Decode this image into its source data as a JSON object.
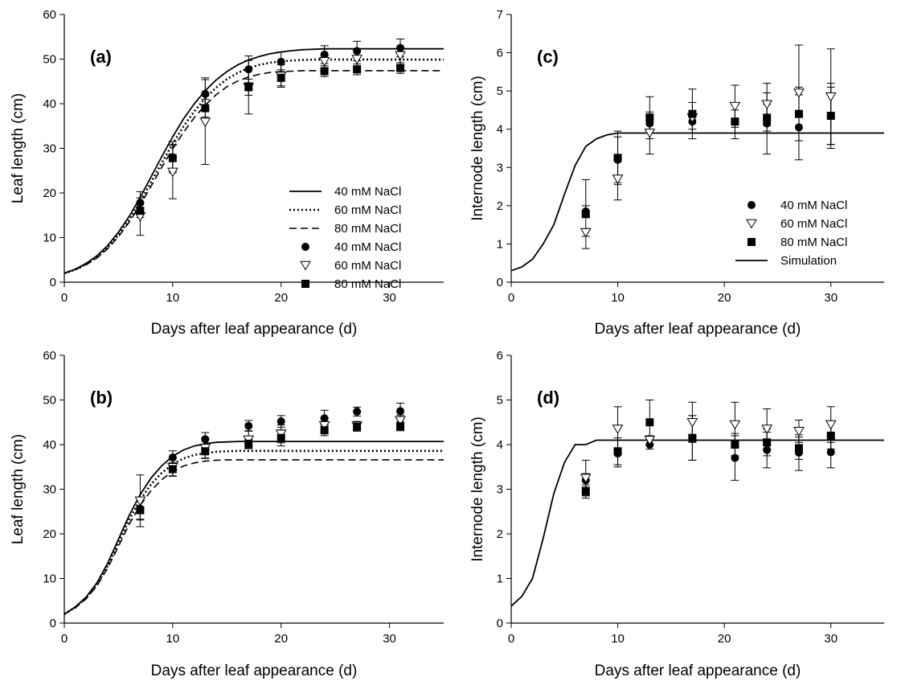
{
  "chart_data": [
    {
      "panel_label": "(a)",
      "type": "scatter",
      "xlabel": "Days after leaf appearance (d)",
      "ylabel": "Leaf length (cm)",
      "xlim": [
        0,
        35
      ],
      "ylim": [
        0,
        60
      ],
      "xticks": [
        0,
        10,
        20,
        30
      ],
      "yticks": [
        0,
        10,
        20,
        30,
        40,
        50,
        60
      ],
      "legend_position": "center-right",
      "legend": [
        {
          "label": "40 mM NaCl",
          "kind": "line",
          "style": "solid"
        },
        {
          "label": "60 mM NaCl",
          "kind": "line",
          "style": "dotted"
        },
        {
          "label": "80 mM NaCl",
          "kind": "line",
          "style": "dashed"
        },
        {
          "label": "40 mM NaCl",
          "kind": "marker",
          "marker": "circle"
        },
        {
          "label": "60 mM NaCl",
          "kind": "marker",
          "marker": "triangle-down"
        },
        {
          "label": "80 mM NaCl",
          "kind": "marker",
          "marker": "square"
        }
      ],
      "lines": [
        {
          "style": "solid",
          "x": [
            0,
            1,
            2,
            3,
            4,
            5,
            6,
            7,
            8,
            9,
            10,
            11,
            12,
            13,
            14,
            15,
            16,
            17,
            18,
            19,
            20,
            21,
            22,
            23,
            24,
            25,
            26,
            27,
            28,
            29,
            30,
            31,
            32,
            33,
            34,
            35
          ],
          "y": [
            2,
            2.9,
            4.2,
            5.9,
            8.2,
            11.2,
            14.8,
            19,
            23.6,
            28.2,
            32.6,
            36.6,
            40,
            42.9,
            45.3,
            47.2,
            48.7,
            49.8,
            50.6,
            51.2,
            51.6,
            51.9,
            52.1,
            52.2,
            52.3,
            52.3,
            52.3,
            52.3,
            52.3,
            52.3,
            52.3,
            52.3,
            52.3,
            52.3,
            52.3,
            52.3
          ]
        },
        {
          "style": "dotted",
          "x": [
            0,
            1,
            2,
            3,
            4,
            5,
            6,
            7,
            8,
            9,
            10,
            11,
            12,
            13,
            14,
            15,
            16,
            17,
            18,
            19,
            20,
            21,
            22,
            23,
            24,
            25,
            26,
            27,
            28,
            29,
            30,
            31,
            32,
            33,
            34,
            35
          ],
          "y": [
            2,
            2.8,
            4,
            5.6,
            7.8,
            10.6,
            14,
            18,
            22.4,
            26.8,
            31,
            34.9,
            38.3,
            41.2,
            43.6,
            45.5,
            46.9,
            48,
            48.7,
            49.2,
            49.5,
            49.7,
            49.8,
            49.9,
            49.9,
            49.9,
            49.9,
            49.9,
            49.9,
            49.9,
            49.9,
            49.9,
            49.9,
            49.9,
            49.9,
            49.9
          ]
        },
        {
          "style": "dashed",
          "x": [
            0,
            1,
            2,
            3,
            4,
            5,
            6,
            7,
            8,
            9,
            10,
            11,
            12,
            13,
            14,
            15,
            16,
            17,
            18,
            19,
            20,
            21,
            22,
            23,
            24,
            25,
            26,
            27,
            28,
            29,
            30,
            31,
            32,
            33,
            34,
            35
          ],
          "y": [
            2,
            2.8,
            3.9,
            5.4,
            7.5,
            10.2,
            13.5,
            17.3,
            21.5,
            25.8,
            29.9,
            33.6,
            36.9,
            39.7,
            42,
            43.8,
            45.1,
            46,
            46.6,
            47,
            47.2,
            47.3,
            47.4,
            47.4,
            47.4,
            47.4,
            47.4,
            47.4,
            47.4,
            47.4,
            47.4,
            47.4,
            47.4,
            47.4,
            47.4,
            47.4
          ]
        }
      ],
      "series": [
        {
          "marker": "circle",
          "x": [
            7,
            10,
            13,
            17,
            20,
            24,
            27,
            31
          ],
          "y": [
            17.8,
            28,
            42.2,
            47.7,
            49.4,
            51,
            51.8,
            52.5
          ],
          "err": [
            2.5,
            3.5,
            3.6,
            3,
            2.2,
            2,
            2.2,
            2
          ]
        },
        {
          "marker": "triangle-down",
          "x": [
            7,
            10,
            13,
            17,
            20,
            24,
            27,
            31
          ],
          "y": [
            14.7,
            24.7,
            35.9,
            43.7,
            46.2,
            49.5,
            50,
            50.8
          ],
          "err": [
            4.2,
            6,
            9.5,
            6,
            2.5,
            1.5,
            2,
            2
          ]
        },
        {
          "marker": "square",
          "x": [
            7,
            10,
            13,
            17,
            20,
            24,
            27,
            31
          ],
          "y": [
            16,
            27.8,
            39,
            43.7,
            45.8,
            47.3,
            47.7,
            48
          ],
          "err": [
            1.5,
            3,
            2,
            1.8,
            1.8,
            1.2,
            1.2,
            1.2
          ]
        }
      ]
    },
    {
      "panel_label": "(c)",
      "type": "scatter",
      "xlabel": "Days after leaf appearance (d)",
      "ylabel": "Internode length (cm)",
      "xlim": [
        0,
        35
      ],
      "ylim": [
        0,
        7
      ],
      "xticks": [
        0,
        10,
        20,
        30
      ],
      "yticks": [
        0,
        1,
        2,
        3,
        4,
        5,
        6,
        7
      ],
      "legend_position": "bottom-right",
      "legend": [
        {
          "label": "40 mM NaCl",
          "kind": "marker",
          "marker": "circle"
        },
        {
          "label": "60 mM NaCl",
          "kind": "marker",
          "marker": "triangle-down"
        },
        {
          "label": "80 mM NaCl",
          "kind": "marker",
          "marker": "square"
        },
        {
          "label": "Simulation",
          "kind": "line",
          "style": "solid"
        }
      ],
      "lines": [
        {
          "style": "solid",
          "x": [
            0,
            1,
            2,
            3,
            4,
            5,
            6,
            7,
            8,
            9,
            10,
            12,
            15,
            20,
            25,
            30,
            35
          ],
          "y": [
            0.3,
            0.4,
            0.6,
            1,
            1.5,
            2.3,
            3.05,
            3.55,
            3.75,
            3.85,
            3.9,
            3.9,
            3.9,
            3.9,
            3.9,
            3.9,
            3.9
          ]
        }
      ],
      "series": [
        {
          "marker": "circle",
          "x": [
            7,
            10,
            13,
            17,
            21,
            24,
            27,
            30
          ],
          "y": [
            1.85,
            3.2,
            4.15,
            4.2,
            4.2,
            4.15,
            4.05,
            4.35
          ],
          "err": [
            0.15,
            0.6,
            0.25,
            0.2,
            0.3,
            0.8,
            0.85,
            0.85
          ]
        },
        {
          "marker": "triangle-down",
          "x": [
            7,
            10,
            13,
            17,
            21,
            24,
            27,
            30
          ],
          "y": [
            1.3,
            2.7,
            3.9,
            4.3,
            4.6,
            4.65,
            4.95,
            4.85
          ],
          "err": [
            0.1,
            0.55,
            0.55,
            0.4,
            0.55,
            0.55,
            1.25,
            1.25
          ]
        },
        {
          "marker": "square",
          "x": [
            7,
            10,
            13,
            17,
            21,
            24,
            27,
            30
          ],
          "y": [
            1.78,
            3.25,
            4.3,
            4.4,
            4.2,
            4.3,
            4.4,
            4.35
          ],
          "err": [
            0.9,
            0.7,
            0.55,
            0.65,
            0.45,
            0.35,
            0.7,
            0.75
          ]
        }
      ]
    },
    {
      "panel_label": "(b)",
      "type": "scatter",
      "xlabel": "Days after leaf appearance (d)",
      "ylabel": "Leaf length (cm)",
      "xlim": [
        0,
        35
      ],
      "ylim": [
        0,
        60
      ],
      "xticks": [
        0,
        10,
        20,
        30
      ],
      "yticks": [
        0,
        10,
        20,
        30,
        40,
        50,
        60
      ],
      "legend": [],
      "lines": [
        {
          "style": "solid",
          "x": [
            0,
            1,
            2,
            3,
            4,
            5,
            6,
            7,
            8,
            9,
            10,
            11,
            12,
            13,
            14,
            15,
            16,
            17,
            18,
            20,
            22,
            25,
            30,
            35
          ],
          "y": [
            2,
            3.6,
            5.8,
            9,
            13.4,
            18.8,
            24.2,
            28.8,
            32.5,
            35.3,
            37.4,
            38.8,
            39.7,
            40.2,
            40.5,
            40.6,
            40.7,
            40.7,
            40.7,
            40.7,
            40.7,
            40.7,
            40.7,
            40.7
          ]
        },
        {
          "style": "dotted",
          "x": [
            0,
            1,
            2,
            3,
            4,
            5,
            6,
            7,
            8,
            9,
            10,
            11,
            12,
            13,
            14,
            15,
            16,
            17,
            18,
            20,
            22,
            25,
            30,
            35
          ],
          "y": [
            2,
            3.5,
            5.6,
            8.6,
            12.8,
            18,
            23.2,
            27.6,
            31.1,
            33.7,
            35.6,
            36.9,
            37.7,
            38.1,
            38.4,
            38.5,
            38.6,
            38.6,
            38.6,
            38.6,
            38.6,
            38.6,
            38.6,
            38.6
          ]
        },
        {
          "style": "dashed",
          "x": [
            0,
            1,
            2,
            3,
            4,
            5,
            6,
            7,
            8,
            9,
            10,
            11,
            12,
            13,
            14,
            15,
            16,
            17,
            18,
            20,
            22,
            25,
            30,
            35
          ],
          "y": [
            2,
            3.4,
            5.4,
            8.3,
            12.3,
            17.2,
            22.2,
            26.4,
            29.7,
            32.2,
            34,
            35.2,
            35.9,
            36.3,
            36.5,
            36.6,
            36.6,
            36.6,
            36.6,
            36.6,
            36.6,
            36.6,
            36.6,
            36.6
          ]
        }
      ],
      "series": [
        {
          "marker": "circle",
          "x": [
            7,
            10,
            13,
            17,
            20,
            24,
            27,
            31
          ],
          "y": [
            25.6,
            37.1,
            41.2,
            44.2,
            45.2,
            45.9,
            47.4,
            47.5
          ],
          "err": [
            2.5,
            1.5,
            1.5,
            1.2,
            1.3,
            1.8,
            1,
            1.8
          ]
        },
        {
          "marker": "triangle-down",
          "x": [
            7,
            10,
            13,
            17,
            20,
            24,
            27,
            31
          ],
          "y": [
            27.4,
            34.9,
            39.2,
            41.1,
            42.4,
            44.3,
            44.2,
            45.4
          ],
          "err": [
            5.8,
            2,
            2.3,
            2,
            2,
            1.5,
            1,
            1.2
          ]
        },
        {
          "marker": "square",
          "x": [
            7,
            10,
            13,
            17,
            20,
            24,
            27,
            31
          ],
          "y": [
            25.3,
            34.5,
            38.5,
            40.2,
            41.5,
            43.2,
            44,
            44.1
          ],
          "err": [
            2,
            1.5,
            1.5,
            1,
            1.8,
            1.2,
            1,
            1
          ]
        }
      ]
    },
    {
      "panel_label": "(d)",
      "type": "scatter",
      "xlabel": "Days after leaf appearance (d)",
      "ylabel": "Internode length (cm)",
      "xlim": [
        0,
        35
      ],
      "ylim": [
        0,
        6
      ],
      "xticks": [
        0,
        10,
        20,
        30
      ],
      "yticks": [
        0,
        1,
        2,
        3,
        4,
        5,
        6
      ],
      "legend": [],
      "lines": [
        {
          "style": "solid",
          "x": [
            0,
            1,
            2,
            3,
            4,
            5,
            6,
            7,
            8,
            9,
            10,
            15,
            20,
            25,
            30,
            35
          ],
          "y": [
            0.38,
            0.6,
            1,
            1.9,
            2.9,
            3.6,
            4,
            4,
            4.1,
            4.1,
            4.1,
            4.1,
            4.1,
            4.1,
            4.1,
            4.1
          ]
        }
      ],
      "series": [
        {
          "marker": "circle",
          "x": [
            7,
            10,
            13,
            17,
            21,
            24,
            27,
            30
          ],
          "y": [
            3.2,
            3.8,
            4,
            4.15,
            3.7,
            3.88,
            3.82,
            3.83
          ],
          "err": [
            0.15,
            0.3,
            0.1,
            0.5,
            0.5,
            0.4,
            0.4,
            0.35
          ]
        },
        {
          "marker": "triangle-down",
          "x": [
            7,
            10,
            13,
            17,
            21,
            24,
            27,
            30
          ],
          "y": [
            3.25,
            4.35,
            4.1,
            4.5,
            4.45,
            4.35,
            4.3,
            4.45
          ],
          "err": [
            0.4,
            0.5,
            0.1,
            0.45,
            0.5,
            0.45,
            0.25,
            0.4
          ]
        },
        {
          "marker": "square",
          "x": [
            7,
            10,
            13,
            17,
            21,
            24,
            27,
            30
          ],
          "y": [
            2.95,
            3.85,
            4.5,
            4.15,
            4,
            4.05,
            3.92,
            4.2
          ],
          "err": [
            0.15,
            0.3,
            0.5,
            0.5,
            0.25,
            0.3,
            0.25,
            0.3
          ]
        }
      ]
    }
  ]
}
